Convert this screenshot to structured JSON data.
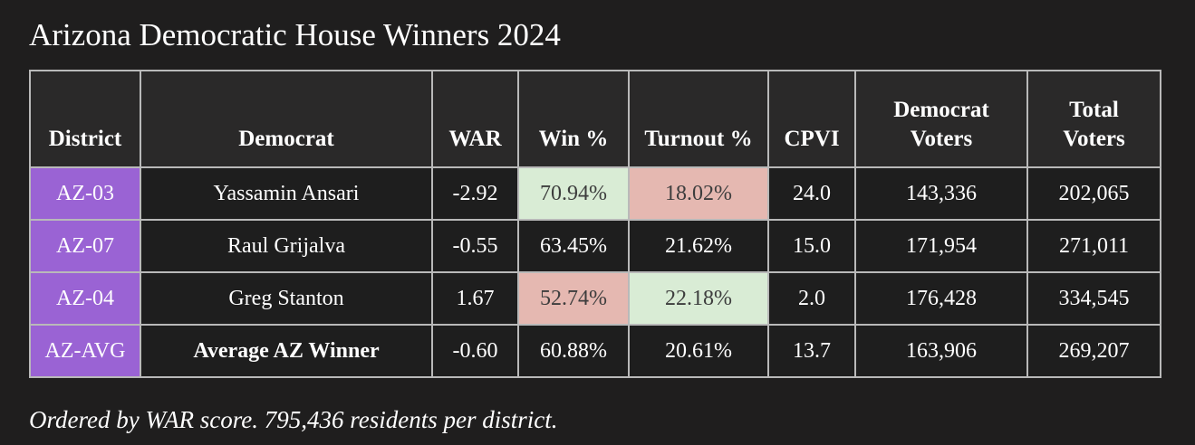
{
  "title": "Arizona Democratic House Winners 2024",
  "headers": {
    "district": "District",
    "democrat": "Democrat",
    "war": "WAR",
    "win_pct": "Win %",
    "turnout_pct": "Turnout %",
    "cpvi": "CPVI",
    "democrat_voters_line1": "Democrat",
    "democrat_voters_line2": "Voters",
    "total_voters_line1": "Total",
    "total_voters_line2": "Voters"
  },
  "rows": [
    {
      "district": "AZ-03",
      "democrat": "Yassamin Ansari",
      "war": "-2.92",
      "win_pct": "70.94%",
      "turnout_pct": "18.02%",
      "cpvi": "24.0",
      "democrat_voters": "143,336",
      "total_voters": "202,065"
    },
    {
      "district": "AZ-07",
      "democrat": "Raul Grijalva",
      "war": "-0.55",
      "win_pct": "63.45%",
      "turnout_pct": "21.62%",
      "cpvi": "15.0",
      "democrat_voters": "171,954",
      "total_voters": "271,011"
    },
    {
      "district": "AZ-04",
      "democrat": "Greg Stanton",
      "war": "1.67",
      "win_pct": "52.74%",
      "turnout_pct": "22.18%",
      "cpvi": "2.0",
      "democrat_voters": "176,428",
      "total_voters": "334,545"
    },
    {
      "district": "AZ-AVG",
      "democrat": "Average AZ Winner",
      "war": "-0.60",
      "win_pct": "60.88%",
      "turnout_pct": "20.61%",
      "cpvi": "13.7",
      "democrat_voters": "163,906",
      "total_voters": "269,207"
    }
  ],
  "colors": {
    "background": "#1f1e1e",
    "district_cell": "#9a63d4",
    "highlight_green": "#d9ecd5",
    "highlight_red": "#e5b8b1",
    "border": "#b9b9b9"
  },
  "footnote": "Ordered by WAR score. 795,436 residents per district."
}
